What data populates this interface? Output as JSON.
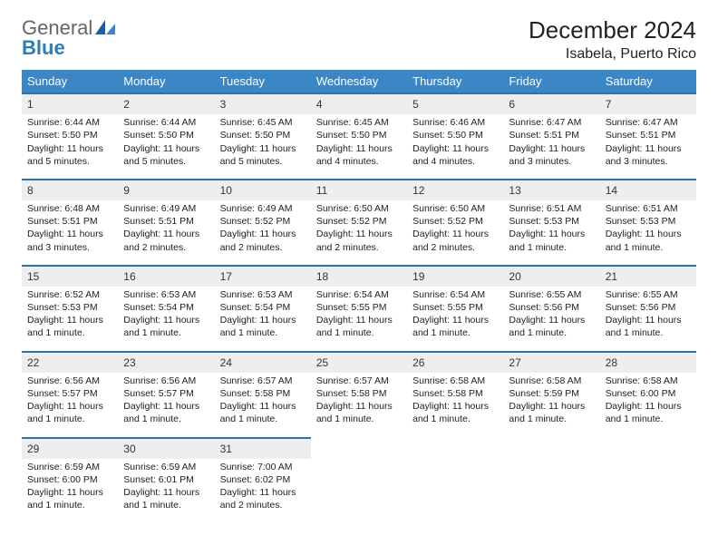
{
  "logo": {
    "text1": "General",
    "text2": "Blue"
  },
  "title": "December 2024",
  "location": "Isabela, Puerto Rico",
  "colors": {
    "header_bg": "#3b86c6",
    "row_border": "#2a74a8",
    "daynum_bg": "#edeef0",
    "logo_gray": "#666666",
    "logo_blue": "#2a7fb8"
  },
  "day_headers": [
    "Sunday",
    "Monday",
    "Tuesday",
    "Wednesday",
    "Thursday",
    "Friday",
    "Saturday"
  ],
  "weeks": [
    [
      {
        "num": "1",
        "sunrise": "Sunrise: 6:44 AM",
        "sunset": "Sunset: 5:50 PM",
        "daylight": "Daylight: 11 hours and 5 minutes."
      },
      {
        "num": "2",
        "sunrise": "Sunrise: 6:44 AM",
        "sunset": "Sunset: 5:50 PM",
        "daylight": "Daylight: 11 hours and 5 minutes."
      },
      {
        "num": "3",
        "sunrise": "Sunrise: 6:45 AM",
        "sunset": "Sunset: 5:50 PM",
        "daylight": "Daylight: 11 hours and 5 minutes."
      },
      {
        "num": "4",
        "sunrise": "Sunrise: 6:45 AM",
        "sunset": "Sunset: 5:50 PM",
        "daylight": "Daylight: 11 hours and 4 minutes."
      },
      {
        "num": "5",
        "sunrise": "Sunrise: 6:46 AM",
        "sunset": "Sunset: 5:50 PM",
        "daylight": "Daylight: 11 hours and 4 minutes."
      },
      {
        "num": "6",
        "sunrise": "Sunrise: 6:47 AM",
        "sunset": "Sunset: 5:51 PM",
        "daylight": "Daylight: 11 hours and 3 minutes."
      },
      {
        "num": "7",
        "sunrise": "Sunrise: 6:47 AM",
        "sunset": "Sunset: 5:51 PM",
        "daylight": "Daylight: 11 hours and 3 minutes."
      }
    ],
    [
      {
        "num": "8",
        "sunrise": "Sunrise: 6:48 AM",
        "sunset": "Sunset: 5:51 PM",
        "daylight": "Daylight: 11 hours and 3 minutes."
      },
      {
        "num": "9",
        "sunrise": "Sunrise: 6:49 AM",
        "sunset": "Sunset: 5:51 PM",
        "daylight": "Daylight: 11 hours and 2 minutes."
      },
      {
        "num": "10",
        "sunrise": "Sunrise: 6:49 AM",
        "sunset": "Sunset: 5:52 PM",
        "daylight": "Daylight: 11 hours and 2 minutes."
      },
      {
        "num": "11",
        "sunrise": "Sunrise: 6:50 AM",
        "sunset": "Sunset: 5:52 PM",
        "daylight": "Daylight: 11 hours and 2 minutes."
      },
      {
        "num": "12",
        "sunrise": "Sunrise: 6:50 AM",
        "sunset": "Sunset: 5:52 PM",
        "daylight": "Daylight: 11 hours and 2 minutes."
      },
      {
        "num": "13",
        "sunrise": "Sunrise: 6:51 AM",
        "sunset": "Sunset: 5:53 PM",
        "daylight": "Daylight: 11 hours and 1 minute."
      },
      {
        "num": "14",
        "sunrise": "Sunrise: 6:51 AM",
        "sunset": "Sunset: 5:53 PM",
        "daylight": "Daylight: 11 hours and 1 minute."
      }
    ],
    [
      {
        "num": "15",
        "sunrise": "Sunrise: 6:52 AM",
        "sunset": "Sunset: 5:53 PM",
        "daylight": "Daylight: 11 hours and 1 minute."
      },
      {
        "num": "16",
        "sunrise": "Sunrise: 6:53 AM",
        "sunset": "Sunset: 5:54 PM",
        "daylight": "Daylight: 11 hours and 1 minute."
      },
      {
        "num": "17",
        "sunrise": "Sunrise: 6:53 AM",
        "sunset": "Sunset: 5:54 PM",
        "daylight": "Daylight: 11 hours and 1 minute."
      },
      {
        "num": "18",
        "sunrise": "Sunrise: 6:54 AM",
        "sunset": "Sunset: 5:55 PM",
        "daylight": "Daylight: 11 hours and 1 minute."
      },
      {
        "num": "19",
        "sunrise": "Sunrise: 6:54 AM",
        "sunset": "Sunset: 5:55 PM",
        "daylight": "Daylight: 11 hours and 1 minute."
      },
      {
        "num": "20",
        "sunrise": "Sunrise: 6:55 AM",
        "sunset": "Sunset: 5:56 PM",
        "daylight": "Daylight: 11 hours and 1 minute."
      },
      {
        "num": "21",
        "sunrise": "Sunrise: 6:55 AM",
        "sunset": "Sunset: 5:56 PM",
        "daylight": "Daylight: 11 hours and 1 minute."
      }
    ],
    [
      {
        "num": "22",
        "sunrise": "Sunrise: 6:56 AM",
        "sunset": "Sunset: 5:57 PM",
        "daylight": "Daylight: 11 hours and 1 minute."
      },
      {
        "num": "23",
        "sunrise": "Sunrise: 6:56 AM",
        "sunset": "Sunset: 5:57 PM",
        "daylight": "Daylight: 11 hours and 1 minute."
      },
      {
        "num": "24",
        "sunrise": "Sunrise: 6:57 AM",
        "sunset": "Sunset: 5:58 PM",
        "daylight": "Daylight: 11 hours and 1 minute."
      },
      {
        "num": "25",
        "sunrise": "Sunrise: 6:57 AM",
        "sunset": "Sunset: 5:58 PM",
        "daylight": "Daylight: 11 hours and 1 minute."
      },
      {
        "num": "26",
        "sunrise": "Sunrise: 6:58 AM",
        "sunset": "Sunset: 5:58 PM",
        "daylight": "Daylight: 11 hours and 1 minute."
      },
      {
        "num": "27",
        "sunrise": "Sunrise: 6:58 AM",
        "sunset": "Sunset: 5:59 PM",
        "daylight": "Daylight: 11 hours and 1 minute."
      },
      {
        "num": "28",
        "sunrise": "Sunrise: 6:58 AM",
        "sunset": "Sunset: 6:00 PM",
        "daylight": "Daylight: 11 hours and 1 minute."
      }
    ],
    [
      {
        "num": "29",
        "sunrise": "Sunrise: 6:59 AM",
        "sunset": "Sunset: 6:00 PM",
        "daylight": "Daylight: 11 hours and 1 minute."
      },
      {
        "num": "30",
        "sunrise": "Sunrise: 6:59 AM",
        "sunset": "Sunset: 6:01 PM",
        "daylight": "Daylight: 11 hours and 1 minute."
      },
      {
        "num": "31",
        "sunrise": "Sunrise: 7:00 AM",
        "sunset": "Sunset: 6:02 PM",
        "daylight": "Daylight: 11 hours and 2 minutes."
      },
      null,
      null,
      null,
      null
    ]
  ]
}
